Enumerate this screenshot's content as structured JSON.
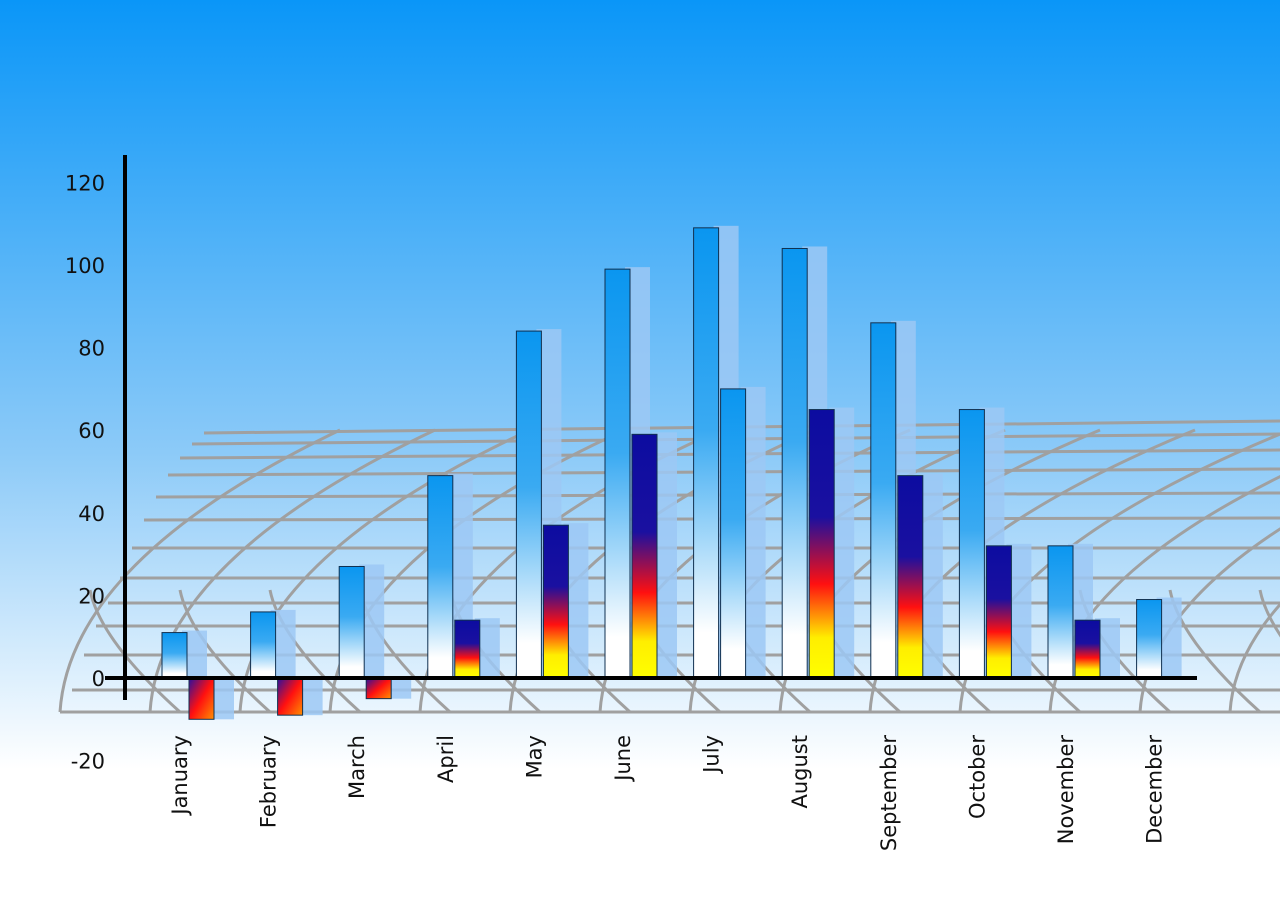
{
  "chart_data": {
    "type": "bar",
    "title": "",
    "xlabel": "",
    "ylabel": "",
    "ylim": [
      -20,
      120
    ],
    "yticks": [
      "120",
      "100",
      "80",
      "60",
      "40",
      "20",
      "0",
      "-20"
    ],
    "grid": false,
    "categories": [
      "January",
      "February",
      "March",
      "April",
      "May",
      "June",
      "July",
      "August",
      "September",
      "October",
      "November",
      "December"
    ],
    "series": [
      {
        "values": [
          11,
          16,
          27,
          49,
          84,
          99,
          109,
          104,
          86,
          65,
          32,
          19
        ],
        "color": "#0a96f0"
      },
      {
        "values": [
          -10,
          -9,
          -5,
          14,
          37,
          59,
          70,
          65,
          49,
          32,
          14,
          null
        ],
        "color": "#1010a0"
      }
    ],
    "colors": {
      "background_top": "#0a96f8",
      "background_bottom": "#ffffff",
      "shadow": "#9cc8f4"
    }
  }
}
